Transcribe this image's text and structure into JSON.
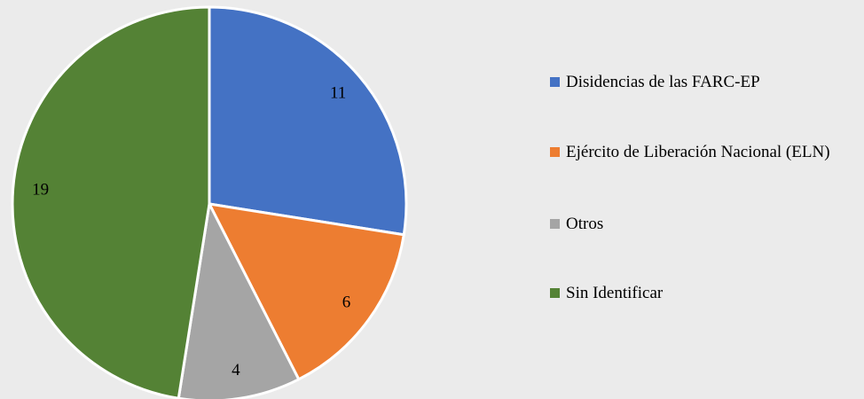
{
  "chart_data": {
    "type": "pie",
    "categories": [
      "Disidencias de las FARC-EP",
      "Ejército de Liberación Nacional (ELN)",
      "Otros",
      "Sin Identificar"
    ],
    "values": [
      11,
      6,
      4,
      19
    ],
    "colors": [
      "#4472c4",
      "#ed7d31",
      "#a5a5a5",
      "#548235"
    ],
    "legend": "right"
  }
}
